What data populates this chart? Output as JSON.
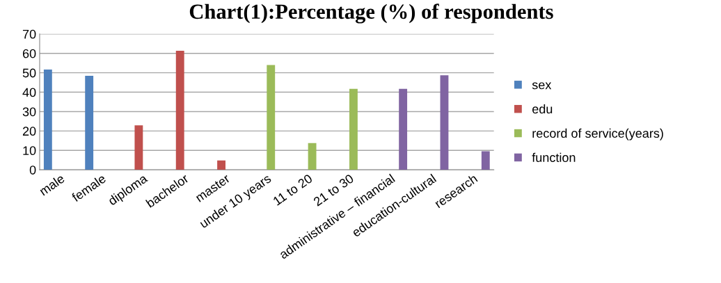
{
  "chart_data": {
    "type": "bar",
    "title": "Chart(1):Percentage (%) of respondents",
    "categories": [
      "male",
      "female",
      "diploma",
      "bachelor",
      "master",
      "under 10 years",
      "11 to 20",
      "21 to 30",
      "administrative – financial",
      "education-cultural",
      "research"
    ],
    "series": [
      {
        "name": "sex",
        "color": "#4f81bd",
        "values": [
          51.7,
          48.4,
          null,
          null,
          null,
          null,
          null,
          null,
          null,
          null,
          null
        ]
      },
      {
        "name": "edu",
        "color": "#c0504d",
        "values": [
          null,
          null,
          22.9,
          61.3,
          4.8,
          null,
          null,
          null,
          null,
          null,
          null
        ]
      },
      {
        "name": "record of service(years)",
        "color": "#9bbb59",
        "values": [
          null,
          null,
          null,
          null,
          null,
          54.0,
          13.8,
          41.7,
          null,
          null,
          null
        ]
      },
      {
        "name": "function",
        "color": "#8064a2",
        "values": [
          null,
          null,
          null,
          null,
          null,
          null,
          null,
          null,
          41.7,
          48.7,
          9.6
        ]
      }
    ],
    "ylim": [
      0,
      70
    ],
    "yticks": [
      0,
      10,
      20,
      30,
      40,
      50,
      60,
      70
    ],
    "grid": "y",
    "legend": "right"
  }
}
